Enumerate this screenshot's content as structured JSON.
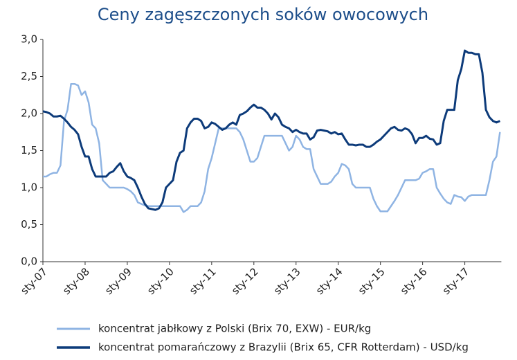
{
  "chart_data": {
    "type": "line",
    "title": "Ceny zagęszczonych soków owocowych",
    "categories": [
      "sty-07",
      null,
      null,
      null,
      null,
      null,
      null,
      null,
      null,
      null,
      null,
      null,
      "sty-08",
      null,
      null,
      null,
      null,
      null,
      null,
      null,
      null,
      null,
      null,
      null,
      "sty-09",
      null,
      null,
      null,
      null,
      null,
      null,
      null,
      null,
      null,
      null,
      null,
      "sty-10",
      null,
      null,
      null,
      null,
      null,
      null,
      null,
      null,
      null,
      null,
      null,
      "sty-11",
      null,
      null,
      null,
      null,
      null,
      null,
      null,
      null,
      null,
      null,
      null,
      "sty-12",
      null,
      null,
      null,
      null,
      null,
      null,
      null,
      null,
      null,
      null,
      null,
      "sty-13",
      null,
      null,
      null,
      null,
      null,
      null,
      null,
      null,
      null,
      null,
      null,
      "sty-14",
      null,
      null,
      null,
      null,
      null,
      null,
      null,
      null,
      null,
      null,
      null,
      "sty-15",
      null,
      null,
      null,
      null,
      null,
      null,
      null,
      null,
      null,
      null,
      null,
      "sty-16",
      null,
      null,
      null,
      null,
      null,
      null,
      null,
      null,
      null,
      null,
      null,
      "sty-17",
      null,
      null,
      null,
      null,
      null,
      null,
      null,
      null,
      null,
      null
    ],
    "series": [
      {
        "name": "koncentrat jabłkowy z Polski (Brix 70, EXW) - EUR/kg",
        "color": "#8fb4e3",
        "values": [
          1.15,
          1.15,
          1.18,
          1.2,
          1.2,
          1.3,
          1.9,
          2.05,
          2.4,
          2.4,
          2.38,
          2.25,
          2.3,
          2.15,
          1.85,
          1.8,
          1.6,
          1.1,
          1.05,
          1.0,
          1.0,
          1.0,
          1.0,
          1.0,
          0.98,
          0.95,
          0.9,
          0.8,
          0.78,
          0.76,
          0.75,
          0.75,
          0.75,
          0.75,
          0.75,
          0.75,
          0.75,
          0.75,
          0.75,
          0.75,
          0.67,
          0.7,
          0.75,
          0.75,
          0.75,
          0.8,
          0.95,
          1.25,
          1.4,
          1.6,
          1.8,
          1.8,
          1.8,
          1.8,
          1.8,
          1.8,
          1.75,
          1.65,
          1.5,
          1.35,
          1.35,
          1.4,
          1.55,
          1.7,
          1.7,
          1.7,
          1.7,
          1.7,
          1.7,
          1.6,
          1.5,
          1.55,
          1.7,
          1.65,
          1.55,
          1.52,
          1.52,
          1.25,
          1.15,
          1.05,
          1.05,
          1.05,
          1.08,
          1.15,
          1.2,
          1.32,
          1.3,
          1.25,
          1.05,
          1.0,
          1.0,
          1.0,
          1.0,
          1.0,
          0.85,
          0.75,
          0.68,
          0.68,
          0.68,
          0.75,
          0.82,
          0.9,
          1.0,
          1.1,
          1.1,
          1.1,
          1.1,
          1.12,
          1.2,
          1.22,
          1.25,
          1.25,
          1.0,
          0.92,
          0.85,
          0.8,
          0.78,
          0.9,
          0.88,
          0.87,
          0.82,
          0.88,
          0.9,
          0.9,
          0.9,
          0.9,
          0.9,
          1.1,
          1.35,
          1.42,
          1.75
        ]
      },
      {
        "name": "koncentrat pomarańczowy z Brazylii (Brix 65, CFR Rotterdam) - USD/kg",
        "color": "#0d3b7a",
        "values": [
          2.03,
          2.02,
          2.0,
          1.96,
          1.96,
          1.97,
          1.93,
          1.88,
          1.82,
          1.78,
          1.72,
          1.55,
          1.42,
          1.42,
          1.25,
          1.15,
          1.15,
          1.15,
          1.15,
          1.2,
          1.22,
          1.28,
          1.33,
          1.22,
          1.15,
          1.13,
          1.1,
          1.0,
          0.88,
          0.78,
          0.72,
          0.71,
          0.7,
          0.72,
          0.8,
          1.0,
          1.05,
          1.1,
          1.35,
          1.47,
          1.5,
          1.8,
          1.88,
          1.93,
          1.93,
          1.9,
          1.8,
          1.82,
          1.88,
          1.86,
          1.82,
          1.78,
          1.8,
          1.85,
          1.88,
          1.85,
          1.98,
          2.0,
          2.03,
          2.08,
          2.12,
          2.08,
          2.08,
          2.05,
          2.0,
          1.92,
          2.0,
          1.95,
          1.85,
          1.82,
          1.8,
          1.75,
          1.78,
          1.75,
          1.73,
          1.73,
          1.65,
          1.68,
          1.77,
          1.78,
          1.77,
          1.76,
          1.73,
          1.75,
          1.72,
          1.73,
          1.65,
          1.58,
          1.58,
          1.57,
          1.58,
          1.58,
          1.55,
          1.55,
          1.58,
          1.62,
          1.65,
          1.7,
          1.75,
          1.8,
          1.82,
          1.78,
          1.77,
          1.8,
          1.78,
          1.72,
          1.6,
          1.67,
          1.67,
          1.7,
          1.66,
          1.65,
          1.58,
          1.6,
          1.9,
          2.05,
          2.05,
          2.05,
          2.45,
          2.6,
          2.85,
          2.82,
          2.82,
          2.8,
          2.8,
          2.55,
          2.05,
          1.95,
          1.9,
          1.88,
          1.9
        ]
      }
    ],
    "ylim": [
      0,
      3
    ],
    "yticks": [
      {
        "value": 0,
        "label": "0,0"
      },
      {
        "value": 0.5,
        "label": "0,5"
      },
      {
        "value": 1,
        "label": "1,0"
      },
      {
        "value": 1.5,
        "label": "1,5"
      },
      {
        "value": 2,
        "label": "2,0"
      },
      {
        "value": 2.5,
        "label": "2,5"
      },
      {
        "value": 3,
        "label": "3,0"
      }
    ],
    "grid": false,
    "legend": "bottom"
  }
}
